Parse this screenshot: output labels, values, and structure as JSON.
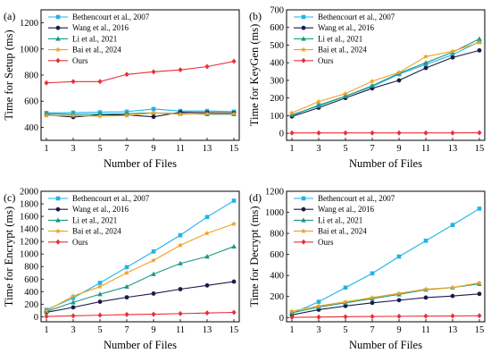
{
  "chart_data": [
    {
      "type": "line",
      "panel_label": "(a)",
      "xlabel": "Number of Files",
      "ylabel": "Time for Setup (ms)",
      "x": [
        1,
        3,
        5,
        7,
        9,
        11,
        13,
        15
      ],
      "xticks": [
        1,
        3,
        5,
        7,
        9,
        11,
        13,
        15
      ],
      "ylim": [
        300,
        1300
      ],
      "yticks": [
        400,
        600,
        800,
        1000,
        1200
      ],
      "legend": "top-left",
      "series": [
        {
          "name": "Bethencourt et al., 2007",
          "color": "#1fb4e6",
          "marker": "square",
          "values": [
            510,
            512,
            515,
            520,
            540,
            525,
            525,
            520
          ]
        },
        {
          "name": "Wang et al., 2016",
          "color": "#1c1a4a",
          "marker": "circle",
          "values": [
            495,
            478,
            495,
            495,
            480,
            515,
            512,
            510
          ]
        },
        {
          "name": "Li et al., 2021",
          "color": "#1a9a82",
          "marker": "triangle",
          "values": [
            505,
            498,
            500,
            505,
            510,
            505,
            500,
            500
          ]
        },
        {
          "name": "Bai et al., 2024",
          "color": "#f0a020",
          "marker": "star",
          "values": [
            490,
            490,
            485,
            490,
            510,
            500,
            505,
            505
          ]
        },
        {
          "name": "Ours",
          "color": "#e8303a",
          "marker": "diamond",
          "values": [
            740,
            750,
            750,
            805,
            825,
            840,
            865,
            905
          ]
        }
      ]
    },
    {
      "type": "line",
      "panel_label": "(b)",
      "xlabel": "Number of Files",
      "ylabel": "Time for KeyGen (ms)",
      "x": [
        1,
        3,
        5,
        7,
        9,
        11,
        13,
        15
      ],
      "xticks": [
        1,
        3,
        5,
        7,
        9,
        11,
        13,
        15
      ],
      "ylim": [
        -40,
        700
      ],
      "yticks": [
        0,
        100,
        200,
        300,
        400,
        500,
        600,
        700
      ],
      "legend": "top-left",
      "series": [
        {
          "name": "Bethencourt et al., 2007",
          "color": "#1fb4e6",
          "marker": "square",
          "values": [
            100,
            160,
            210,
            265,
            335,
            390,
            445,
            520
          ]
        },
        {
          "name": "Wang et al., 2016",
          "color": "#1c1a4a",
          "marker": "circle",
          "values": [
            95,
            145,
            200,
            255,
            300,
            370,
            430,
            470
          ]
        },
        {
          "name": "Li et al., 2021",
          "color": "#1a9a82",
          "marker": "triangle",
          "values": [
            105,
            155,
            210,
            270,
            340,
            400,
            460,
            535
          ]
        },
        {
          "name": "Bai et al., 2024",
          "color": "#f0a020",
          "marker": "star",
          "values": [
            115,
            180,
            225,
            295,
            345,
            435,
            465,
            515
          ]
        },
        {
          "name": "Ours",
          "color": "#e8303a",
          "marker": "diamond",
          "values": [
            2,
            2,
            2,
            2,
            2,
            2,
            2,
            3
          ]
        }
      ]
    },
    {
      "type": "line",
      "panel_label": "(c)",
      "xlabel": "Number of Files",
      "ylabel": "Time for Encrypt (ms)",
      "x": [
        1,
        3,
        5,
        7,
        9,
        11,
        13,
        15
      ],
      "xticks": [
        1,
        3,
        5,
        7,
        9,
        11,
        13,
        15
      ],
      "ylim": [
        -80,
        2000
      ],
      "yticks": [
        0,
        200,
        400,
        600,
        800,
        1000,
        1200,
        1400,
        1600,
        1800,
        2000
      ],
      "legend": "top-left",
      "series": [
        {
          "name": "Bethencourt et al., 2007",
          "color": "#1fb4e6",
          "marker": "square",
          "values": [
            110,
            300,
            540,
            790,
            1040,
            1300,
            1590,
            1850
          ]
        },
        {
          "name": "Wang et al., 2016",
          "color": "#1c1a4a",
          "marker": "circle",
          "values": [
            70,
            150,
            240,
            310,
            370,
            440,
            500,
            560
          ]
        },
        {
          "name": "Li et al., 2021",
          "color": "#1a9a82",
          "marker": "triangle",
          "values": [
            85,
            230,
            360,
            480,
            680,
            850,
            960,
            1120
          ]
        },
        {
          "name": "Bai et al., 2024",
          "color": "#f0a020",
          "marker": "star",
          "values": [
            95,
            330,
            480,
            700,
            900,
            1140,
            1330,
            1480
          ]
        },
        {
          "name": "Ours",
          "color": "#e8303a",
          "marker": "diamond",
          "values": [
            5,
            15,
            25,
            35,
            40,
            50,
            60,
            70
          ]
        }
      ]
    },
    {
      "type": "line",
      "panel_label": "(d)",
      "xlabel": "Number of Files",
      "ylabel": "Time for Decrypt (ms)",
      "x": [
        1,
        3,
        5,
        7,
        9,
        11,
        13,
        15
      ],
      "xticks": [
        1,
        3,
        5,
        7,
        9,
        11,
        13,
        15
      ],
      "ylim": [
        -40,
        1200
      ],
      "yticks": [
        0,
        200,
        400,
        600,
        800,
        1000,
        1200
      ],
      "legend": "top-left",
      "series": [
        {
          "name": "Bethencourt et al., 2007",
          "color": "#1fb4e6",
          "marker": "square",
          "values": [
            40,
            150,
            285,
            420,
            580,
            730,
            880,
            1035
          ]
        },
        {
          "name": "Wang et al., 2016",
          "color": "#1c1a4a",
          "marker": "circle",
          "values": [
            25,
            75,
            110,
            140,
            165,
            190,
            205,
            225
          ]
        },
        {
          "name": "Li et al., 2021",
          "color": "#1a9a82",
          "marker": "triangle",
          "values": [
            45,
            100,
            140,
            180,
            220,
            265,
            285,
            320
          ]
        },
        {
          "name": "Bai et al., 2024",
          "color": "#f0a020",
          "marker": "star",
          "values": [
            60,
            110,
            150,
            190,
            230,
            270,
            285,
            330
          ]
        },
        {
          "name": "Ours",
          "color": "#e8303a",
          "marker": "diamond",
          "values": [
            2,
            5,
            8,
            10,
            12,
            14,
            15,
            17
          ]
        }
      ]
    }
  ]
}
